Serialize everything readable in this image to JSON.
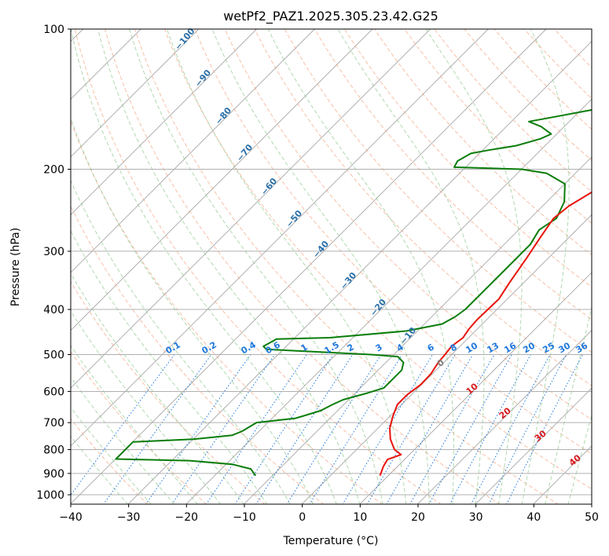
{
  "chart_data": {
    "type": "skew-t",
    "title": "wetPf2_PAZ1.2025.305.23.42.G25",
    "xlabel": "Temperature (°C)",
    "ylabel": "Pressure (hPa)",
    "xlim": [
      -40,
      50
    ],
    "ylim": [
      1050,
      100
    ],
    "x_ticks": [
      "−40",
      "−30",
      "−20",
      "−10",
      "0",
      "10",
      "20",
      "30",
      "40",
      "50"
    ],
    "y_ticks": [
      "100",
      "200",
      "300",
      "400",
      "500",
      "600",
      "700",
      "800",
      "900",
      "1000"
    ],
    "temperature_series": {
      "name": "Temperature",
      "color": "#e8140a",
      "points": [
        [
          8.5,
          910
        ],
        [
          7.5,
          870
        ],
        [
          7.0,
          840
        ],
        [
          8.5,
          820
        ],
        [
          6.5,
          800
        ],
        [
          4.0,
          760
        ],
        [
          2.0,
          720
        ],
        [
          0.5,
          680
        ],
        [
          -0.8,
          640
        ],
        [
          -0.8,
          610
        ],
        [
          -0.2,
          580
        ],
        [
          -0.3,
          550
        ],
        [
          -1.0,
          520
        ],
        [
          -1.2,
          500
        ],
        [
          -1.5,
          480
        ],
        [
          -1.0,
          460
        ],
        [
          -1.5,
          440
        ],
        [
          -1.7,
          420
        ],
        [
          -1.6,
          400
        ],
        [
          -1.5,
          380
        ],
        [
          -2.5,
          350
        ],
        [
          -3.8,
          310
        ],
        [
          -5.0,
          280
        ],
        [
          -6.0,
          255
        ],
        [
          -5.5,
          240
        ],
        [
          -5.0,
          235
        ],
        [
          -3.5,
          220
        ],
        [
          -1.5,
          210
        ],
        [
          0,
          205
        ],
        [
          5,
          197
        ],
        [
          8,
          190
        ],
        [
          11,
          180
        ],
        [
          18,
          155
        ],
        [
          22,
          140
        ],
        [
          27,
          126
        ],
        [
          32,
          112
        ],
        [
          35,
          100
        ]
      ]
    },
    "dewpoint_series": {
      "name": "Dewpoint",
      "color": "#0a7d0a",
      "points": [
        [
          -13,
          910
        ],
        [
          -15,
          880
        ],
        [
          -19,
          860
        ],
        [
          -27,
          845
        ],
        [
          -40,
          838
        ],
        [
          -40,
          770
        ],
        [
          -30,
          760
        ],
        [
          -24,
          745
        ],
        [
          -23,
          730
        ],
        [
          -22,
          700
        ],
        [
          -16,
          685
        ],
        [
          -13,
          660
        ],
        [
          -12,
          640
        ],
        [
          -11,
          625
        ],
        [
          -8,
          605
        ],
        [
          -6,
          590
        ],
        [
          -6,
          575
        ],
        [
          -6,
          560
        ],
        [
          -6,
          540
        ],
        [
          -7,
          520
        ],
        [
          -9,
          505
        ],
        [
          -14,
          500
        ],
        [
          -26,
          492
        ],
        [
          -33,
          487
        ],
        [
          -34,
          480
        ],
        [
          -33,
          463
        ],
        [
          -24,
          460
        ],
        [
          -12,
          445
        ],
        [
          -7,
          430
        ],
        [
          -6,
          415
        ],
        [
          -5.5,
          400
        ],
        [
          -5.5,
          380
        ],
        [
          -5.5,
          330
        ],
        [
          -5.5,
          290
        ],
        [
          -6.5,
          270
        ],
        [
          -5.5,
          255
        ],
        [
          -7,
          235
        ],
        [
          -10,
          215
        ],
        [
          -15,
          204
        ],
        [
          -20,
          200
        ],
        [
          -32,
          198
        ],
        [
          -32.5,
          192
        ],
        [
          -31.5,
          185
        ],
        [
          -29,
          182
        ],
        [
          -25,
          178
        ],
        [
          -22,
          172
        ],
        [
          -21,
          168
        ],
        [
          -24,
          162
        ],
        [
          -27,
          158
        ],
        [
          -23,
          154
        ],
        [
          -19,
          150
        ],
        [
          -14,
          145
        ],
        [
          -11,
          138
        ],
        [
          -9,
          128
        ],
        [
          -6,
          120
        ],
        [
          -3,
          112
        ],
        [
          -1,
          106
        ],
        [
          1,
          100
        ]
      ]
    },
    "mixing_ratio_labels": [
      "0.1",
      "0.2",
      "0.4",
      "0.6",
      "1",
      "1.5",
      "2",
      "3",
      "4",
      "6",
      "8",
      "10",
      "13",
      "16",
      "20",
      "25",
      "30",
      "36"
    ],
    "dry_adiabat_labels": [
      "−100",
      "−90",
      "−80",
      "−70",
      "−60",
      "−50",
      "−40",
      "−30",
      "−20",
      "−10"
    ],
    "moist_adiabat_labels": [
      "0",
      "10",
      "20",
      "30",
      "40"
    ]
  }
}
